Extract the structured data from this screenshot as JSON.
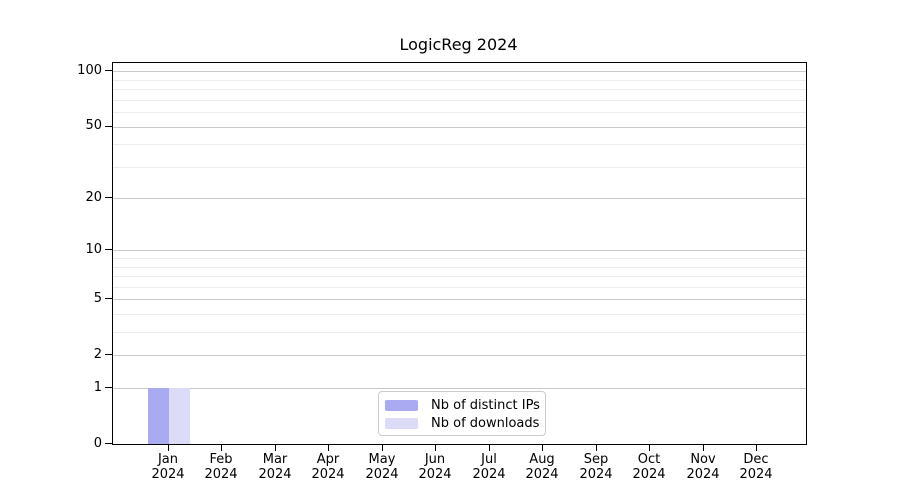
{
  "chart_data": {
    "type": "bar",
    "title": "LogicReg 2024",
    "xlabel": "",
    "ylabel": "",
    "year_label": "2024",
    "categories": [
      "Jan",
      "Feb",
      "Mar",
      "Apr",
      "May",
      "Jun",
      "Jul",
      "Aug",
      "Sep",
      "Oct",
      "Nov",
      "Dec"
    ],
    "series": [
      {
        "name": "Nb of distinct IPs",
        "color": "#a9aaf2",
        "values": [
          1,
          0,
          0,
          0,
          0,
          0,
          0,
          0,
          0,
          0,
          0,
          0
        ]
      },
      {
        "name": "Nb of downloads",
        "color": "#dcdcf8",
        "values": [
          1,
          0,
          0,
          0,
          0,
          0,
          0,
          0,
          0,
          0,
          0,
          0
        ]
      }
    ],
    "yscale": "log1p",
    "ylim": [
      0,
      111
    ],
    "y_major_ticks": [
      0,
      1,
      2,
      5,
      10,
      20,
      50,
      100
    ],
    "y_minor_gridlines": [
      3,
      4,
      6,
      7,
      8,
      9,
      30,
      40,
      60,
      70,
      80,
      90
    ],
    "grid": "horizontal",
    "legend_position": "lower center",
    "colors": {
      "axis": "#000000",
      "grid_major": "#c9c9c9",
      "grid_minor": "#ececec",
      "legend_border": "#cccccc",
      "background": "#ffffff"
    }
  }
}
